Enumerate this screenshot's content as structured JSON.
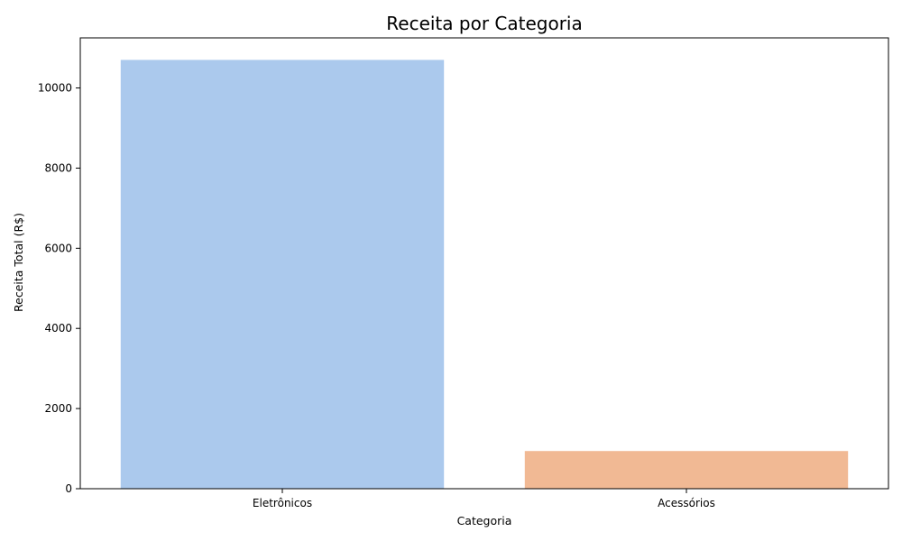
{
  "chart_data": {
    "type": "bar",
    "title": "Receita por Categoria",
    "xlabel": "Categoria",
    "ylabel": "Receita Total (R$)",
    "categories": [
      "Eletrônicos",
      "Acessórios"
    ],
    "values": [
      10700,
      940
    ],
    "colors": [
      "#abc9ed",
      "#f1b994"
    ],
    "ylim": [
      0,
      11250
    ],
    "yticks": [
      0,
      2000,
      4000,
      6000,
      8000,
      10000
    ],
    "grid": false,
    "legend": "none"
  }
}
